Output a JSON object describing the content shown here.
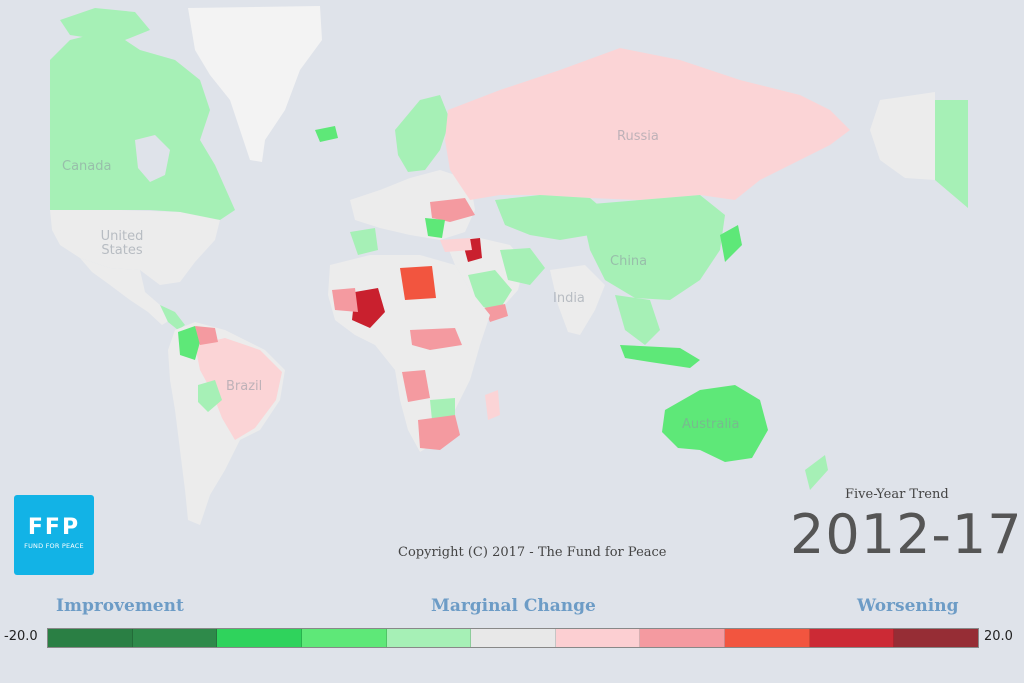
{
  "map": {
    "country_labels": [
      {
        "id": "canada",
        "text": "Canada"
      },
      {
        "id": "united-states",
        "text": "United States"
      },
      {
        "id": "brazil",
        "text": "Brazil"
      },
      {
        "id": "russia",
        "text": "Russia"
      },
      {
        "id": "china",
        "text": "China"
      },
      {
        "id": "india",
        "text": "India"
      },
      {
        "id": "australia",
        "text": "Australia"
      }
    ],
    "fills": {
      "land_default": "#ececec",
      "ocean": "#dfe3ea",
      "strong_improvement": "#2a8a4a",
      "improvement": "#5ee878",
      "slight_improvement": "#a6f0b6",
      "marginal": "#eaeaea",
      "slight_worsening": "#fbd4d6",
      "worsening": "#f49aa0",
      "strong_worsening": "#f2553f",
      "severe_worsening": "#c9202e"
    }
  },
  "logo": {
    "letters": "FFP",
    "subtitle": "FUND FOR PEACE"
  },
  "copyright": "Copyright (C) 2017 - The Fund for Peace",
  "trend": {
    "label": "Five-Year Trend",
    "years": "2012-17"
  },
  "scale": {
    "improvement_label": "Improvement",
    "marginal_label": "Marginal Change",
    "worsening_label": "Worsening",
    "min": "-20.0",
    "max": "20.0",
    "colors": [
      "#2a7f44",
      "#2e8a4a",
      "#2fd35c",
      "#5ee878",
      "#a6f0b6",
      "#e8e8e8",
      "#fccfd2",
      "#f49aa0",
      "#f2553f",
      "#cc2a35",
      "#962d35"
    ]
  }
}
